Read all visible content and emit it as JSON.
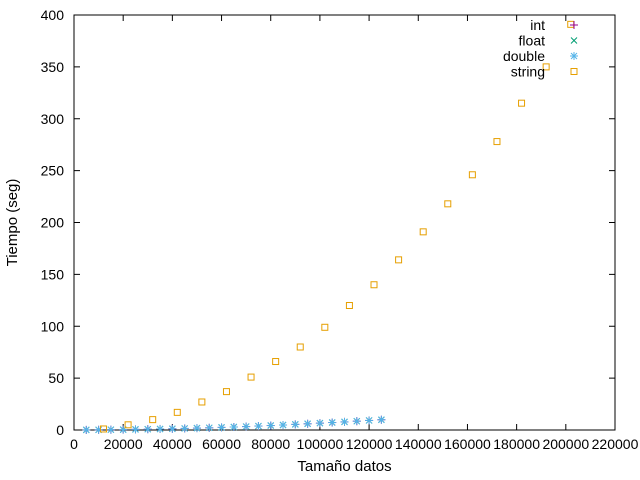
{
  "chart_data": {
    "type": "scatter",
    "title": "",
    "xlabel": "Tamaño datos",
    "ylabel": "Tiempo (seg)",
    "xlim": [
      0,
      220000
    ],
    "ylim": [
      0,
      400
    ],
    "grid": false,
    "legend_position": "top-right",
    "x_ticks": [
      0,
      20000,
      40000,
      60000,
      80000,
      100000,
      120000,
      140000,
      160000,
      180000,
      200000,
      220000
    ],
    "x_tick_labels": [
      "0",
      "20000",
      "40000",
      "60000",
      "80000",
      "100000",
      "120000",
      "140000",
      "160000",
      "180000",
      "200000",
      "220000"
    ],
    "y_ticks": [
      0,
      50,
      100,
      150,
      200,
      250,
      300,
      350,
      400
    ],
    "y_tick_labels": [
      "0",
      "50",
      "100",
      "150",
      "200",
      "250",
      "300",
      "350",
      "400"
    ],
    "series": [
      {
        "name": "int",
        "marker": "plus",
        "color": "#94008f",
        "points": [
          [
            5000,
            0.1
          ],
          [
            10000,
            0.2
          ],
          [
            15000,
            0.3
          ],
          [
            20000,
            0.4
          ],
          [
            25000,
            0.6
          ],
          [
            30000,
            0.8
          ],
          [
            35000,
            1.0
          ],
          [
            40000,
            1.2
          ],
          [
            45000,
            1.5
          ],
          [
            50000,
            1.8
          ],
          [
            55000,
            2.1
          ],
          [
            60000,
            2.5
          ],
          [
            65000,
            2.9
          ],
          [
            70000,
            3.3
          ],
          [
            75000,
            3.8
          ],
          [
            80000,
            4.3
          ],
          [
            85000,
            4.8
          ],
          [
            90000,
            5.4
          ],
          [
            95000,
            6.0
          ],
          [
            100000,
            6.6
          ],
          [
            105000,
            7.2
          ],
          [
            110000,
            7.8
          ],
          [
            115000,
            8.5
          ],
          [
            120000,
            9.2
          ],
          [
            125000,
            9.9
          ]
        ]
      },
      {
        "name": "float",
        "marker": "cross",
        "color": "#009e73",
        "points": [
          [
            5000,
            0.1
          ],
          [
            10000,
            0.2
          ],
          [
            15000,
            0.3
          ],
          [
            20000,
            0.4
          ],
          [
            25000,
            0.6
          ],
          [
            30000,
            0.8
          ],
          [
            35000,
            1.0
          ],
          [
            40000,
            1.2
          ],
          [
            45000,
            1.5
          ],
          [
            50000,
            1.8
          ],
          [
            55000,
            2.1
          ],
          [
            60000,
            2.5
          ],
          [
            65000,
            2.9
          ],
          [
            70000,
            3.3
          ],
          [
            75000,
            3.8
          ],
          [
            80000,
            4.3
          ],
          [
            85000,
            4.8
          ],
          [
            90000,
            5.4
          ],
          [
            95000,
            6.0
          ],
          [
            100000,
            6.6
          ],
          [
            105000,
            7.2
          ],
          [
            110000,
            7.8
          ],
          [
            115000,
            8.5
          ],
          [
            120000,
            9.2
          ],
          [
            125000,
            9.9
          ]
        ]
      },
      {
        "name": "double",
        "marker": "asterisk",
        "color": "#56b4e9",
        "points": [
          [
            5000,
            0.1
          ],
          [
            10000,
            0.2
          ],
          [
            15000,
            0.3
          ],
          [
            20000,
            0.4
          ],
          [
            25000,
            0.6
          ],
          [
            30000,
            0.8
          ],
          [
            35000,
            1.0
          ],
          [
            40000,
            1.2
          ],
          [
            45000,
            1.5
          ],
          [
            50000,
            1.8
          ],
          [
            55000,
            2.1
          ],
          [
            60000,
            2.5
          ],
          [
            65000,
            2.9
          ],
          [
            70000,
            3.3
          ],
          [
            75000,
            3.8
          ],
          [
            80000,
            4.3
          ],
          [
            85000,
            4.8
          ],
          [
            90000,
            5.4
          ],
          [
            95000,
            6.0
          ],
          [
            100000,
            6.6
          ],
          [
            105000,
            7.2
          ],
          [
            110000,
            7.8
          ],
          [
            115000,
            8.5
          ],
          [
            120000,
            9.2
          ],
          [
            125000,
            9.9
          ]
        ]
      },
      {
        "name": "string",
        "marker": "square",
        "color": "#e69f00",
        "points": [
          [
            12000,
            1
          ],
          [
            22000,
            5
          ],
          [
            32000,
            10
          ],
          [
            42000,
            17
          ],
          [
            52000,
            27
          ],
          [
            62000,
            37
          ],
          [
            72000,
            51
          ],
          [
            82000,
            66
          ],
          [
            92000,
            80
          ],
          [
            102000,
            99
          ],
          [
            112000,
            120
          ],
          [
            122000,
            140
          ],
          [
            132000,
            164
          ],
          [
            142000,
            191
          ],
          [
            152000,
            218
          ],
          [
            162000,
            246
          ],
          [
            172000,
            278
          ],
          [
            182000,
            315
          ],
          [
            192000,
            350
          ],
          [
            202000,
            391
          ]
        ]
      }
    ]
  }
}
